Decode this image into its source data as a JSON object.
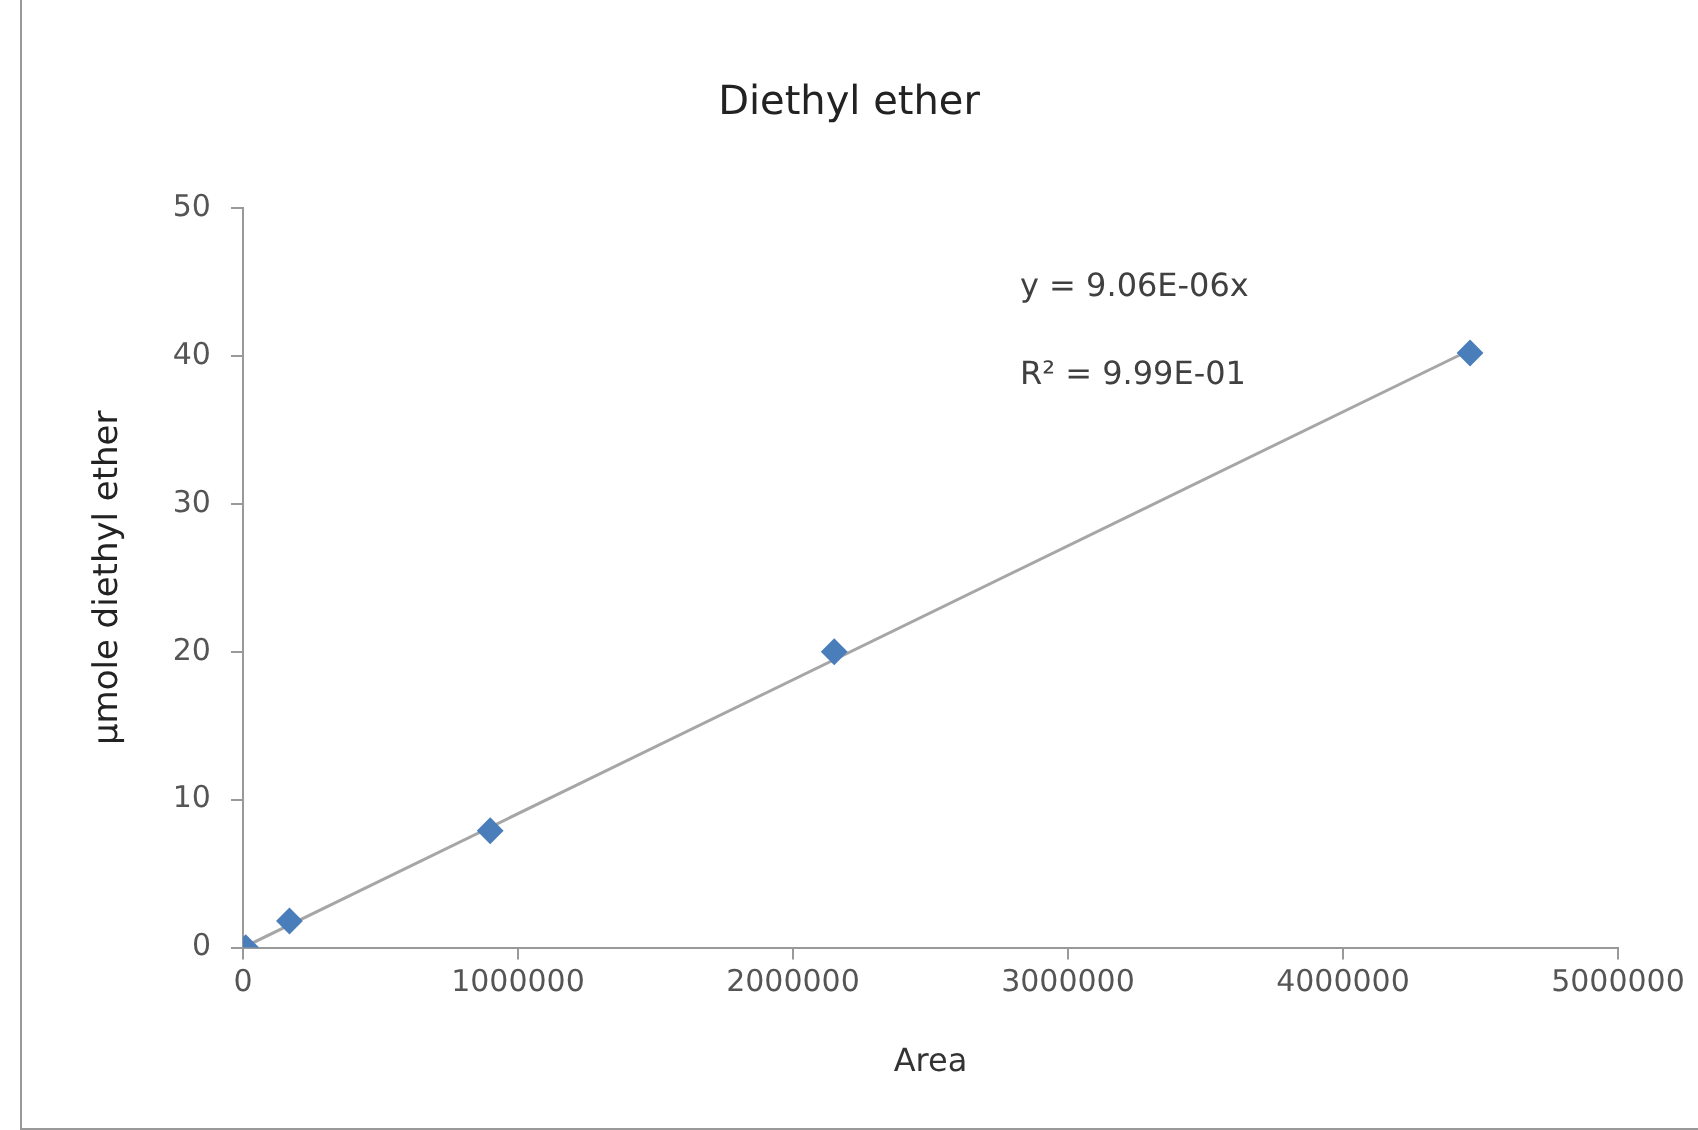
{
  "chart_data": {
    "type": "scatter",
    "title": "Diethyl ether",
    "xlabel": "Area",
    "ylabel": "μmole diethyl ether",
    "xlim": [
      0,
      5000000
    ],
    "xticks": [
      0,
      1000000,
      2000000,
      3000000,
      4000000,
      5000000
    ],
    "ylim": [
      0,
      50
    ],
    "yticks": [
      0,
      10,
      20,
      30,
      40,
      50
    ],
    "series": [
      {
        "type": "scatter",
        "color": "#4a7ebb",
        "marker": "diamond",
        "x": [
          10000,
          169000,
          899000,
          2150000,
          4462000
        ],
        "values": [
          0,
          1.8,
          7.9,
          20,
          40.2
        ]
      },
      {
        "type": "line",
        "color": "#a6a6a6",
        "marker": "none",
        "x": [
          0,
          4462000
        ],
        "values": [
          0,
          40.4
        ]
      }
    ],
    "annotations": [
      "y = 9.06E-06x",
      "R² = 9.99E-01"
    ]
  }
}
